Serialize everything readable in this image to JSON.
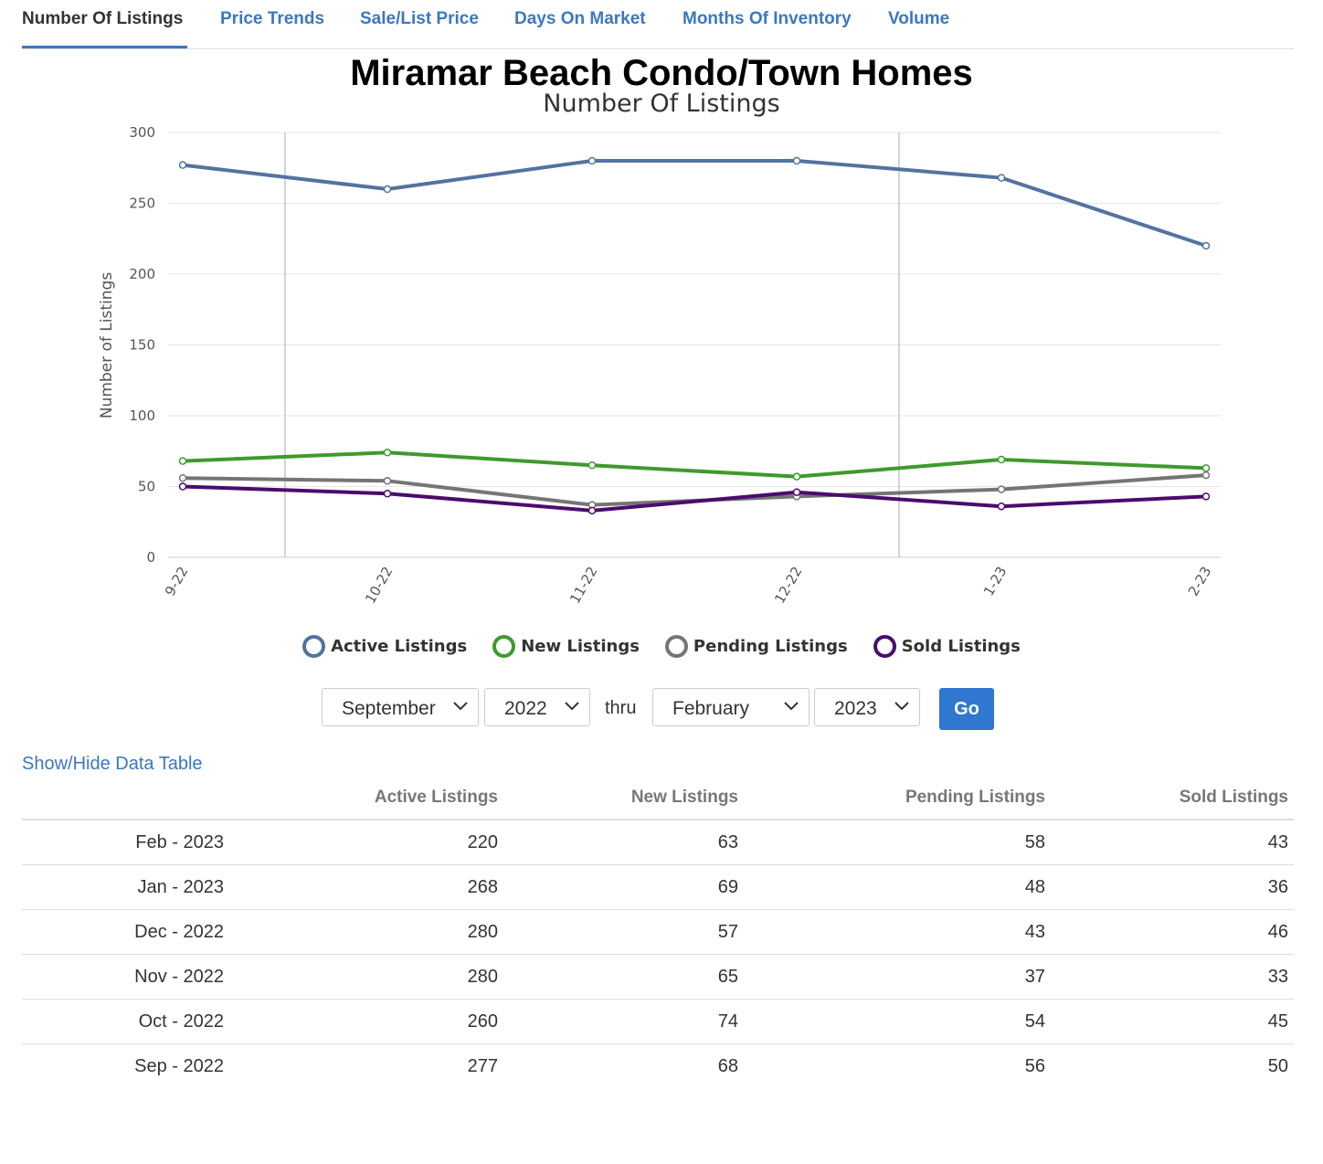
{
  "tabs": [
    {
      "label": "Number Of Listings",
      "active": true
    },
    {
      "label": "Price Trends"
    },
    {
      "label": "Sale/List Price"
    },
    {
      "label": "Days On Market"
    },
    {
      "label": "Months Of Inventory"
    },
    {
      "label": "Volume"
    }
  ],
  "chart_data": {
    "type": "line",
    "title": "Miramar Beach Condo/Town Homes",
    "subtitle": "Number Of Listings",
    "ylabel": "Number of Listings",
    "xlabel": "",
    "ylim": [
      0,
      300
    ],
    "yticks": [
      "0",
      "50",
      "100",
      "150",
      "200",
      "250",
      "300"
    ],
    "categories": [
      "9-22",
      "10-22",
      "11-22",
      "12-22",
      "1-23",
      "2-23"
    ],
    "grid": true,
    "legend_position": "bottom",
    "series": [
      {
        "name": "Active Listings",
        "color": "#5373a0",
        "values": [
          277,
          260,
          280,
          280,
          268,
          220
        ]
      },
      {
        "name": "New Listings",
        "color": "#3f9a2e",
        "values": [
          68,
          74,
          65,
          57,
          69,
          63
        ]
      },
      {
        "name": "Pending Listings",
        "color": "#757575",
        "values": [
          56,
          54,
          37,
          43,
          48,
          58
        ]
      },
      {
        "name": "Sold Listings",
        "color": "#4b0c6e",
        "values": [
          50,
          45,
          33,
          46,
          36,
          43
        ]
      }
    ]
  },
  "filters": {
    "from_month": "September",
    "from_year": "2022",
    "thru": "thru",
    "to_month": "February",
    "to_year": "2023",
    "go": "Go"
  },
  "toggle_link": "Show/Hide Data Table",
  "table": {
    "headers": [
      "",
      "Active Listings",
      "New Listings",
      "Pending Listings",
      "Sold Listings"
    ],
    "rows": [
      [
        "Feb - 2023",
        "220",
        "63",
        "58",
        "43"
      ],
      [
        "Jan - 2023",
        "268",
        "69",
        "48",
        "36"
      ],
      [
        "Dec - 2022",
        "280",
        "57",
        "43",
        "46"
      ],
      [
        "Nov - 2022",
        "280",
        "65",
        "37",
        "33"
      ],
      [
        "Oct - 2022",
        "260",
        "74",
        "54",
        "45"
      ],
      [
        "Sep - 2022",
        "277",
        "68",
        "56",
        "50"
      ]
    ]
  }
}
